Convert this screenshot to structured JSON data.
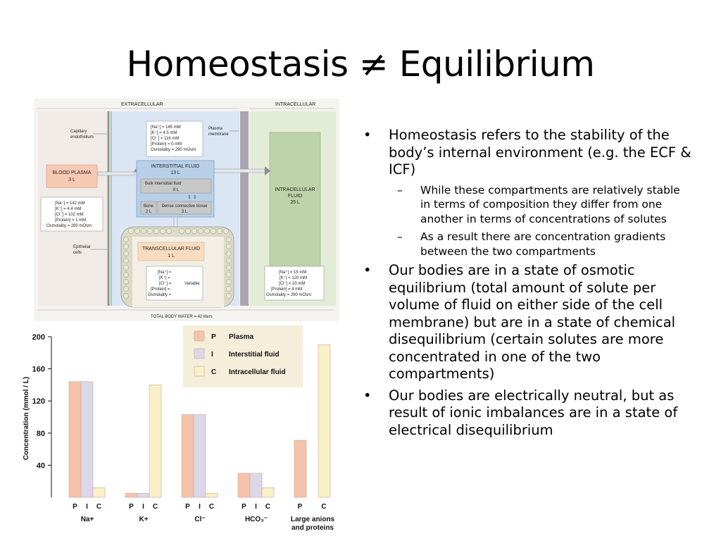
{
  "slide": {
    "title": "Homeostasis ≠ Equilibrium"
  },
  "diagram": {
    "extracellular_label": "EXTRACELLULAR",
    "intracellular_label": "INTRACELLULAR",
    "capillary_endothelium": [
      "Capillary",
      "endothelium"
    ],
    "plasma_membrane": [
      "Plasma",
      "membrane"
    ],
    "blood_plasma": {
      "name": "BLOOD PLASMA",
      "volume": "3 L"
    },
    "interstitial_fluid": {
      "name": "INTERSTITIAL FLUID",
      "volume": "13 L"
    },
    "bulk_interstitial": {
      "name": "Bulk interstitial fluid",
      "volume": "8 L"
    },
    "bone": {
      "name": "Bone",
      "volume": "2 L"
    },
    "dense_connective": {
      "name": "Dense connective tissue",
      "volume": "3 L"
    },
    "intracellular_fluid": {
      "name": [
        "INTRACELLULAR",
        "FLUID"
      ],
      "volume": "25 L"
    },
    "transcellular_fluid": {
      "name": "TRANSCELLULAR FLUID",
      "volume": "1 L"
    },
    "epithelial_cells": [
      "Epithelial",
      "cells"
    ],
    "interstitial_values": [
      "[Na⁺] = 145 mM",
      "[K⁺] = 4.5 mM",
      "[Cl⁻] = 116 mM",
      "[Protein] = 0 mM",
      "Osmolality = 290 mOsm"
    ],
    "plasma_values": [
      "[Na⁺] = 142 mM",
      "[K⁺] = 4.4 mM",
      "[Cl⁻] = 102 mM",
      "[Protein] = 1 mM",
      "Osmolality = 290 mOsm"
    ],
    "transcellular_values": [
      "[Na⁺] =",
      "[K⁺] =",
      "[Cl⁻] =",
      "[Protein] =",
      "Osmolality ="
    ],
    "variable_label": "Variable",
    "intracellular_values": [
      "[Na⁺] = 15 mM",
      "[K⁺] = 120 mM",
      "[Cl⁻] = 20 mM",
      "[Protein] = 4 mM",
      "Osmolality = 290 mOsm"
    ],
    "total_body_water": "TOTAL BODY WATER = 42 liters"
  },
  "chart_data": {
    "type": "bar",
    "ylabel": "Concentration (mmol / L)",
    "yticks": [
      40,
      80,
      120,
      160,
      200
    ],
    "ylim": [
      0,
      200
    ],
    "categories": [
      "Na⁺",
      "K⁺",
      "Cl⁻",
      "HCO₃⁻",
      "Large anions and proteins"
    ],
    "category_labels": [
      [
        "Na+"
      ],
      [
        "K+"
      ],
      [
        "Cl⁻"
      ],
      [
        "HCO₃⁻"
      ],
      [
        "Large anions",
        "and proteins"
      ]
    ],
    "sub_labels": [
      "P",
      "I",
      "C"
    ],
    "series": [
      {
        "name": "Plasma",
        "key": "P",
        "color": "#f5c3ab",
        "values": [
          144,
          5,
          103,
          30,
          71
        ]
      },
      {
        "name": "Interstitial fluid",
        "key": "I",
        "color": "#ddd7ea",
        "values": [
          144,
          5,
          103,
          30,
          null
        ]
      },
      {
        "name": "Intracellular fluid",
        "key": "C",
        "color": "#faf0c8",
        "values": [
          12,
          140,
          5,
          12,
          190
        ]
      }
    ],
    "legend_position": "top-right"
  },
  "bullets": [
    {
      "level": 1,
      "text": "Homeostasis refers to the stability of the body’s internal environment (e.g. the ECF & ICF)"
    },
    {
      "level": 2,
      "text": "While these compartments are relatively stable in terms of composition they differ from one another in terms of concentrations of solutes"
    },
    {
      "level": 2,
      "text": "As a result there are concentration gradients between the two compartments"
    },
    {
      "level": 1,
      "text": "Our bodies are in a state of osmotic equilibrium (total amount of solute per volume of fluid on either side of the cell membrane) but are in a state of chemical disequilibrium (certain solutes are more concentrated in one of the two compartments)"
    },
    {
      "level": 1,
      "text": "Our bodies are electrically neutral, but as result of ionic imbalances are in a state of electrical disequilibrium"
    }
  ],
  "colors": {
    "plasma_box": "#f6c9b2",
    "interstitial_bg": "#dbe6f5",
    "intracellular_bg": "#e3ecd6",
    "intracellular_box": "#bcd2a8",
    "interstitial_box": "#b8cfe8"
  }
}
